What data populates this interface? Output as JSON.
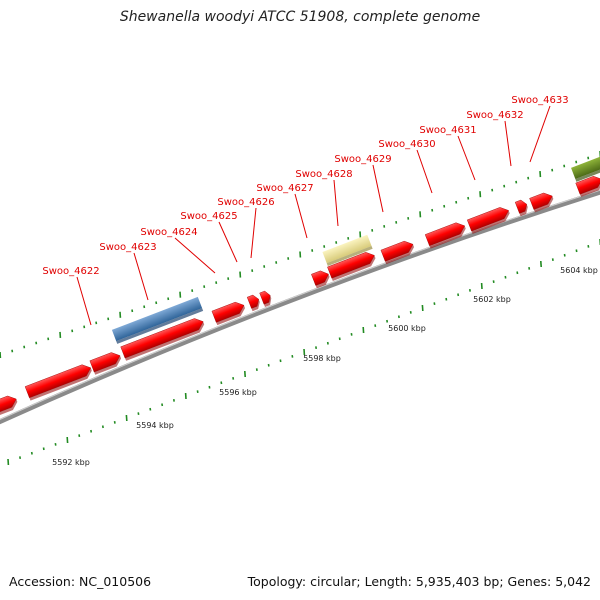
{
  "title": "Shewanella woodyi ATCC 51908, complete genome",
  "footer": {
    "accession": "Accession: NC_010506",
    "summary": "Topology: circular; Length: 5,935,403 bp; Genes: 5,042"
  },
  "colors": {
    "cds": "#ff0000",
    "gene_label": "#e00000",
    "backbone": "#888888",
    "tick": "#228b22",
    "feature_blue": "#4682b4",
    "feature_yellow": "#f0e68c",
    "feature_olive": "#6b8e23"
  },
  "gene_labels": [
    "Swoo_4622",
    "Swoo_4623",
    "Swoo_4624",
    "Swoo_4625",
    "Swoo_4626",
    "Swoo_4627",
    "Swoo_4628",
    "Swoo_4629",
    "Swoo_4630",
    "Swoo_4631",
    "Swoo_4632",
    "Swoo_4633"
  ],
  "kbp_labels": [
    "5592 kbp",
    "5594 kbp",
    "5596 kbp",
    "5598 kbp",
    "5600 kbp",
    "5602 kbp",
    "5604 kbp"
  ]
}
